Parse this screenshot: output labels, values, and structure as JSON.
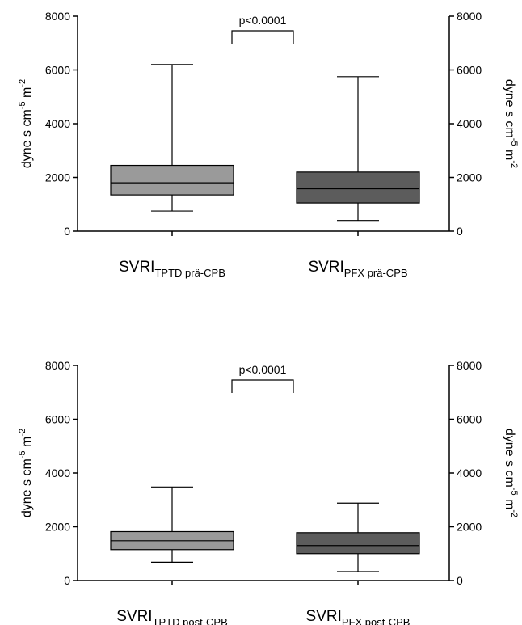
{
  "chart_data": [
    {
      "type": "box",
      "ylim": [
        0,
        8000
      ],
      "yticks": [
        "0",
        "2000",
        "4000",
        "6000",
        "8000"
      ],
      "ylabel_left": {
        "base": "dyne s cm",
        "sup1": "-5",
        "mid": " m",
        "sup2": "-2"
      },
      "ylabel_right": {
        "base": "dyne s cm",
        "sup1": "-5",
        "mid": " m",
        "sup2": "-2"
      },
      "annotation": "p<0.0001",
      "boxes": [
        {
          "label_main": "SVRI",
          "label_sub": "TPTD prä-CPB",
          "color": "#9a9a9a",
          "min": 750,
          "q1": 1350,
          "median": 1800,
          "q3": 2450,
          "max": 6200
        },
        {
          "label_main": "SVRI",
          "label_sub": "PFX prä-CPB",
          "color": "#5c5c5c",
          "min": 400,
          "q1": 1050,
          "median": 1580,
          "q3": 2200,
          "max": 5750
        }
      ]
    },
    {
      "type": "box",
      "ylim": [
        0,
        8000
      ],
      "yticks": [
        "0",
        "2000",
        "4000",
        "6000",
        "8000"
      ],
      "ylabel_left": {
        "base": "dyne s cm",
        "sup1": "-5",
        "mid": " m",
        "sup2": "-2"
      },
      "ylabel_right": {
        "base": "dyne s cm",
        "sup1": "-5",
        "mid": " m",
        "sup2": "-2"
      },
      "annotation": "p<0.0001",
      "boxes": [
        {
          "label_main": "SVRI",
          "label_sub": "TPTD post-CPB",
          "color": "#9a9a9a",
          "min": 680,
          "q1": 1150,
          "median": 1480,
          "q3": 1820,
          "max": 3480
        },
        {
          "label_main": "SVRI",
          "label_sub": "PFX post-CPB",
          "color": "#5c5c5c",
          "min": 330,
          "q1": 1000,
          "median": 1300,
          "q3": 1780,
          "max": 2880
        }
      ]
    }
  ]
}
